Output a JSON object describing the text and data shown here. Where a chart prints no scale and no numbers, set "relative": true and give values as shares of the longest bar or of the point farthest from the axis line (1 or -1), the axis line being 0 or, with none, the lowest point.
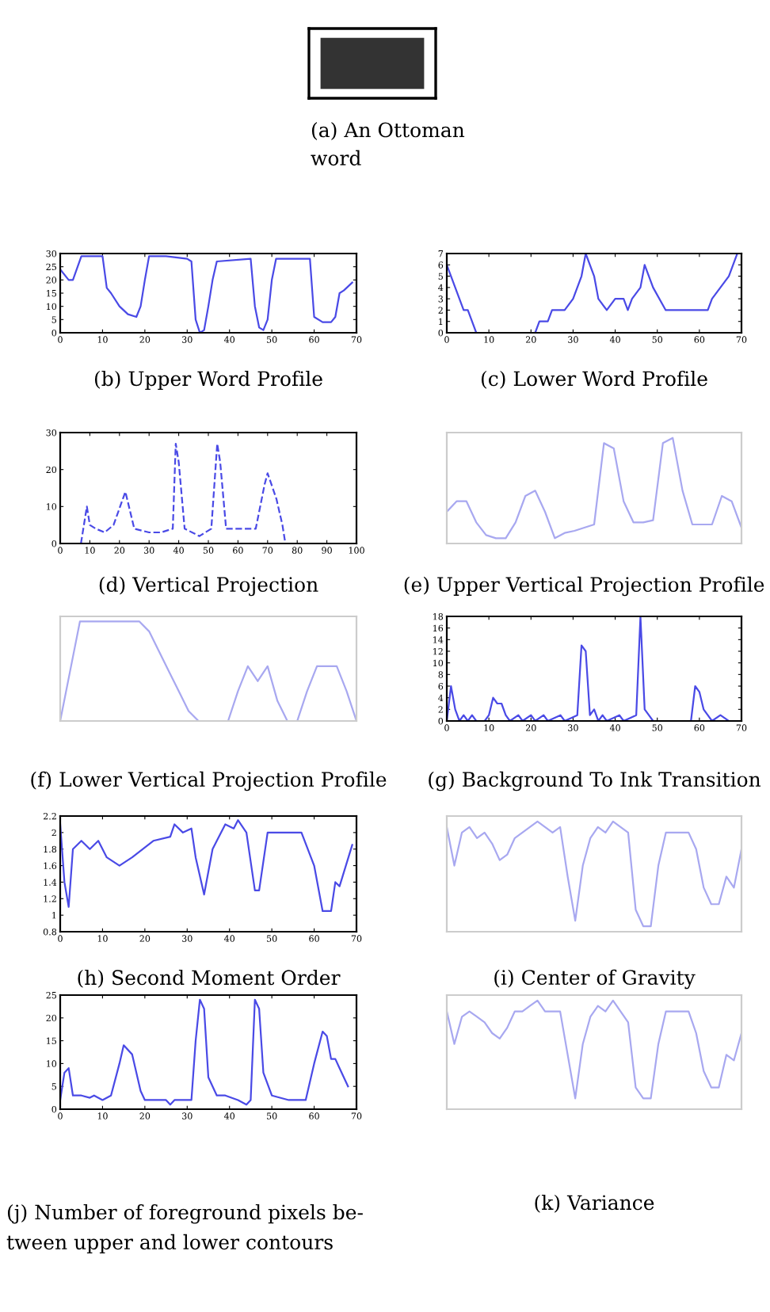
{
  "chart_data": [
    {
      "type": "other",
      "title": "(a) An Ottoman\nword"
    },
    {
      "type": "line",
      "title": "(b) Upper Word Profile",
      "color": "#4a4ae6",
      "xlim": [
        0,
        70
      ],
      "xticks": [
        0,
        10,
        20,
        30,
        40,
        50,
        60,
        70
      ],
      "ylim": [
        0,
        30
      ],
      "yticks": [
        0,
        5,
        10,
        15,
        20,
        25,
        30
      ],
      "x": [
        0,
        2,
        3,
        5,
        10,
        11,
        12,
        14,
        16,
        18,
        19,
        20,
        21,
        25,
        30,
        31,
        32,
        33,
        34,
        35,
        36,
        37,
        45,
        46,
        47,
        48,
        49,
        50,
        51,
        59,
        60,
        62,
        64,
        65,
        66,
        67,
        69
      ],
      "values": [
        24,
        20,
        20,
        29,
        29,
        17,
        15,
        10,
        7,
        6,
        10,
        20,
        29,
        29,
        28,
        27,
        5,
        0,
        1,
        10,
        20,
        27,
        28,
        10,
        2,
        1,
        5,
        20,
        28,
        28,
        6,
        4,
        4,
        6,
        15,
        16,
        19
      ]
    },
    {
      "type": "line",
      "title": "(c) Lower Word Profile",
      "color": "#4a4ae6",
      "xlim": [
        0,
        70
      ],
      "xticks": [
        0,
        10,
        20,
        30,
        40,
        50,
        60,
        70
      ],
      "ylim": [
        0,
        7
      ],
      "yticks": [
        0,
        1,
        2,
        3,
        4,
        5,
        6,
        7
      ],
      "x": [
        0,
        1,
        2,
        3,
        4,
        5,
        6,
        7,
        21,
        22,
        24,
        25,
        28,
        30,
        32,
        33,
        35,
        36,
        38,
        40,
        42,
        43,
        44,
        46,
        47,
        49,
        52,
        62,
        63,
        65,
        67,
        69
      ],
      "values": [
        6,
        5,
        4,
        3,
        2,
        2,
        1,
        0,
        0,
        1,
        1,
        2,
        2,
        3,
        5,
        7,
        5,
        3,
        2,
        3,
        3,
        2,
        3,
        4,
        6,
        4,
        2,
        2,
        3,
        4,
        5,
        7
      ]
    },
    {
      "type": "line",
      "title": "(d) Vertical Projection",
      "color": "#4a4ae6",
      "line_style": "dashed",
      "xlim": [
        0,
        100
      ],
      "xticks": [
        0,
        10,
        20,
        30,
        40,
        50,
        60,
        70,
        80,
        90,
        100
      ],
      "ylim": [
        0,
        30
      ],
      "yticks": [
        0,
        10,
        20,
        30
      ],
      "x": [
        7,
        9,
        10,
        12,
        15,
        18,
        22,
        25,
        30,
        34,
        38,
        39,
        40,
        42,
        47,
        51,
        53,
        54,
        56,
        60,
        66,
        69,
        70,
        73,
        75,
        76
      ],
      "values": [
        0,
        10,
        5,
        4,
        3,
        5,
        14,
        4,
        3,
        3,
        4,
        27,
        22,
        4,
        2,
        4,
        27,
        22,
        4,
        4,
        4,
        16,
        19,
        12,
        5,
        0
      ]
    },
    {
      "type": "line",
      "title": "(e) Upper Vertical Projection Profile",
      "color": "#a8a8f0",
      "relative": true,
      "categories": [
        null,
        null,
        null,
        null,
        null,
        null,
        null,
        null,
        null,
        null,
        null,
        null,
        null,
        null,
        null,
        null,
        null,
        null,
        null,
        null,
        null,
        null,
        null,
        null,
        null,
        null,
        null,
        null,
        null,
        null,
        null
      ],
      "values": [
        0.3,
        0.4,
        0.4,
        0.2,
        0.08,
        0.05,
        0.05,
        0.2,
        0.45,
        0.5,
        0.3,
        0.05,
        0.1,
        0.12,
        0.15,
        0.18,
        0.95,
        0.9,
        0.4,
        0.2,
        0.2,
        0.22,
        0.95,
        1,
        0.5,
        0.18,
        0.18,
        0.18,
        0.45,
        0.4,
        0.15
      ]
    },
    {
      "type": "line",
      "title": "(f) Lower Vertical Projection Profile",
      "color": "#a8a8f0",
      "relative": true,
      "categories": [
        null,
        null,
        null,
        null,
        null,
        null,
        null,
        null,
        null,
        null,
        null,
        null,
        null,
        null,
        null,
        null,
        null,
        null,
        null,
        null,
        null,
        null,
        null,
        null,
        null,
        null,
        null,
        null,
        null,
        null,
        null
      ],
      "values": [
        0,
        0.5,
        1,
        1,
        1,
        1,
        1,
        1,
        1,
        0.9,
        0.7,
        0.5,
        0.3,
        0.1,
        0,
        0,
        0,
        0,
        0.3,
        0.55,
        0.4,
        0.55,
        0.2,
        0,
        0,
        0.3,
        0.55,
        0.55,
        0.55,
        0.3,
        0
      ]
    },
    {
      "type": "line",
      "title": "(g) Background To Ink Transition",
      "color": "#4a4ae6",
      "xlim": [
        0,
        70
      ],
      "xticks": [
        0,
        10,
        20,
        30,
        40,
        50,
        60,
        70
      ],
      "ylim": [
        0,
        18
      ],
      "yticks": [
        0,
        2,
        4,
        6,
        8,
        10,
        12,
        14,
        16,
        18
      ],
      "x": [
        0,
        1,
        2,
        3,
        4,
        5,
        6,
        7,
        9,
        10,
        11,
        12,
        13,
        14,
        15,
        17,
        18,
        20,
        21,
        23,
        24,
        27,
        28,
        31,
        32,
        33,
        34,
        35,
        36,
        37,
        38,
        41,
        42,
        45,
        46,
        47,
        48,
        49,
        58,
        59,
        60,
        61,
        62,
        63,
        65,
        67
      ],
      "values": [
        0,
        6,
        2,
        0,
        1,
        0,
        1,
        0,
        0,
        1,
        4,
        3,
        3,
        1,
        0,
        1,
        0,
        1,
        0,
        1,
        0,
        1,
        0,
        1,
        13,
        12,
        1,
        2,
        0,
        1,
        0,
        1,
        0,
        1,
        18,
        2,
        1,
        0,
        0,
        6,
        5,
        2,
        1,
        0,
        1,
        0
      ]
    },
    {
      "type": "line",
      "title": "(h) Second Moment Order",
      "color": "#4a4ae6",
      "xlim": [
        0,
        70
      ],
      "xticks": [
        0,
        10,
        20,
        30,
        40,
        50,
        60,
        70
      ],
      "ylim": [
        0.8,
        2.2
      ],
      "yticks": [
        0.8,
        1,
        1.2,
        1.4,
        1.6,
        1.8,
        2,
        2.2
      ],
      "x": [
        0,
        1,
        2,
        3,
        5,
        7,
        9,
        11,
        14,
        17,
        22,
        26,
        27,
        29,
        31,
        32,
        34,
        36,
        37,
        39,
        41,
        42,
        44,
        46,
        47,
        49,
        57,
        60,
        62,
        64,
        65,
        66,
        69
      ],
      "values": [
        2.1,
        1.4,
        1.1,
        1.8,
        1.9,
        1.8,
        1.9,
        1.7,
        1.6,
        1.7,
        1.9,
        1.95,
        2.1,
        2.0,
        2.05,
        1.7,
        1.25,
        1.8,
        1.9,
        2.1,
        2.05,
        2.15,
        2.0,
        1.3,
        1.3,
        2.0,
        2.0,
        1.6,
        1.05,
        1.05,
        1.4,
        1.35,
        1.85
      ]
    },
    {
      "type": "line",
      "title": "(i) Center of Gravity",
      "color": "#a8a8f0",
      "relative": true,
      "categories": [
        null,
        null,
        null,
        null,
        null,
        null,
        null,
        null,
        null,
        null,
        null,
        null,
        null,
        null,
        null,
        null,
        null,
        null,
        null,
        null,
        null,
        null,
        null,
        null,
        null,
        null,
        null,
        null,
        null,
        null,
        null,
        null,
        null,
        null,
        null,
        null,
        null,
        null,
        null,
        null
      ],
      "values": [
        0.95,
        0.6,
        0.9,
        0.95,
        0.85,
        0.9,
        0.8,
        0.65,
        0.7,
        0.85,
        0.9,
        0.95,
        1,
        0.95,
        0.9,
        0.95,
        0.5,
        0.1,
        0.6,
        0.85,
        0.95,
        0.9,
        1,
        0.95,
        0.9,
        0.2,
        0.05,
        0.05,
        0.6,
        0.9,
        0.9,
        0.9,
        0.9,
        0.75,
        0.4,
        0.25,
        0.25,
        0.5,
        0.4,
        0.75
      ]
    },
    {
      "type": "line",
      "title": "(j) Number of foreground pixels be-\ntween upper and lower contours",
      "color": "#4a4ae6",
      "xlim": [
        0,
        70
      ],
      "xticks": [
        0,
        10,
        20,
        30,
        40,
        50,
        60,
        70
      ],
      "ylim": [
        0,
        25
      ],
      "yticks": [
        0,
        5,
        10,
        15,
        20,
        25
      ],
      "x": [
        0,
        1,
        2,
        3,
        5,
        7,
        8,
        10,
        12,
        14,
        15,
        17,
        19,
        20,
        25,
        26,
        27,
        31,
        32,
        33,
        34,
        35,
        37,
        39,
        42,
        44,
        45,
        46,
        47,
        48,
        50,
        54,
        58,
        60,
        62,
        63,
        64,
        65,
        66,
        68
      ],
      "values": [
        2,
        8,
        9,
        3,
        3,
        2.5,
        3,
        2,
        3,
        10,
        14,
        12,
        4,
        2,
        2,
        1,
        2,
        2,
        15,
        24,
        22,
        7,
        3,
        3,
        2,
        1,
        2,
        24,
        22,
        8,
        3,
        2,
        2,
        10,
        17,
        16,
        11,
        11,
        9,
        5
      ]
    },
    {
      "type": "line",
      "title": "(k) Variance",
      "color": "#a8a8f0",
      "relative": true,
      "categories": [
        null,
        null,
        null,
        null,
        null,
        null,
        null,
        null,
        null,
        null,
        null,
        null,
        null,
        null,
        null,
        null,
        null,
        null,
        null,
        null,
        null,
        null,
        null,
        null,
        null,
        null,
        null,
        null,
        null,
        null,
        null,
        null,
        null,
        null,
        null,
        null,
        null,
        null,
        null,
        null
      ],
      "values": [
        0.9,
        0.6,
        0.85,
        0.9,
        0.85,
        0.8,
        0.7,
        0.65,
        0.75,
        0.9,
        0.9,
        0.95,
        1,
        0.9,
        0.9,
        0.9,
        0.5,
        0.1,
        0.6,
        0.85,
        0.95,
        0.9,
        1,
        0.9,
        0.8,
        0.2,
        0.1,
        0.1,
        0.6,
        0.9,
        0.9,
        0.9,
        0.9,
        0.7,
        0.35,
        0.2,
        0.2,
        0.5,
        0.45,
        0.7
      ]
    }
  ]
}
